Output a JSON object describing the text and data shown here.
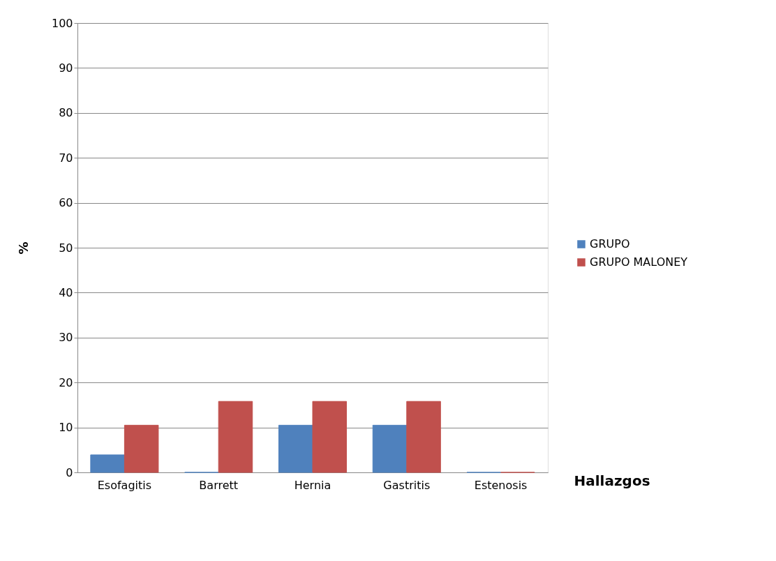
{
  "chart_data": {
    "type": "bar",
    "xlabel": "Hallazgos",
    "ylabel": "%",
    "categories": [
      "Esofagitis",
      "Barrett",
      "Hernia",
      "Gastritis",
      "Estenosis"
    ],
    "series": [
      {
        "name": "GRUPO",
        "color": "#4f81bd",
        "values": [
          3.9,
          0,
          10.5,
          10.5,
          0
        ]
      },
      {
        "name": "GRUPO MALONEY",
        "color": "#c0504d",
        "values": [
          10.5,
          15.8,
          15.8,
          15.8,
          0
        ]
      }
    ],
    "ylim": [
      0,
      100
    ],
    "yticks": [
      0,
      10,
      20,
      30,
      40,
      50,
      60,
      70,
      80,
      90,
      100
    ],
    "grid": "y",
    "legend": "right"
  }
}
